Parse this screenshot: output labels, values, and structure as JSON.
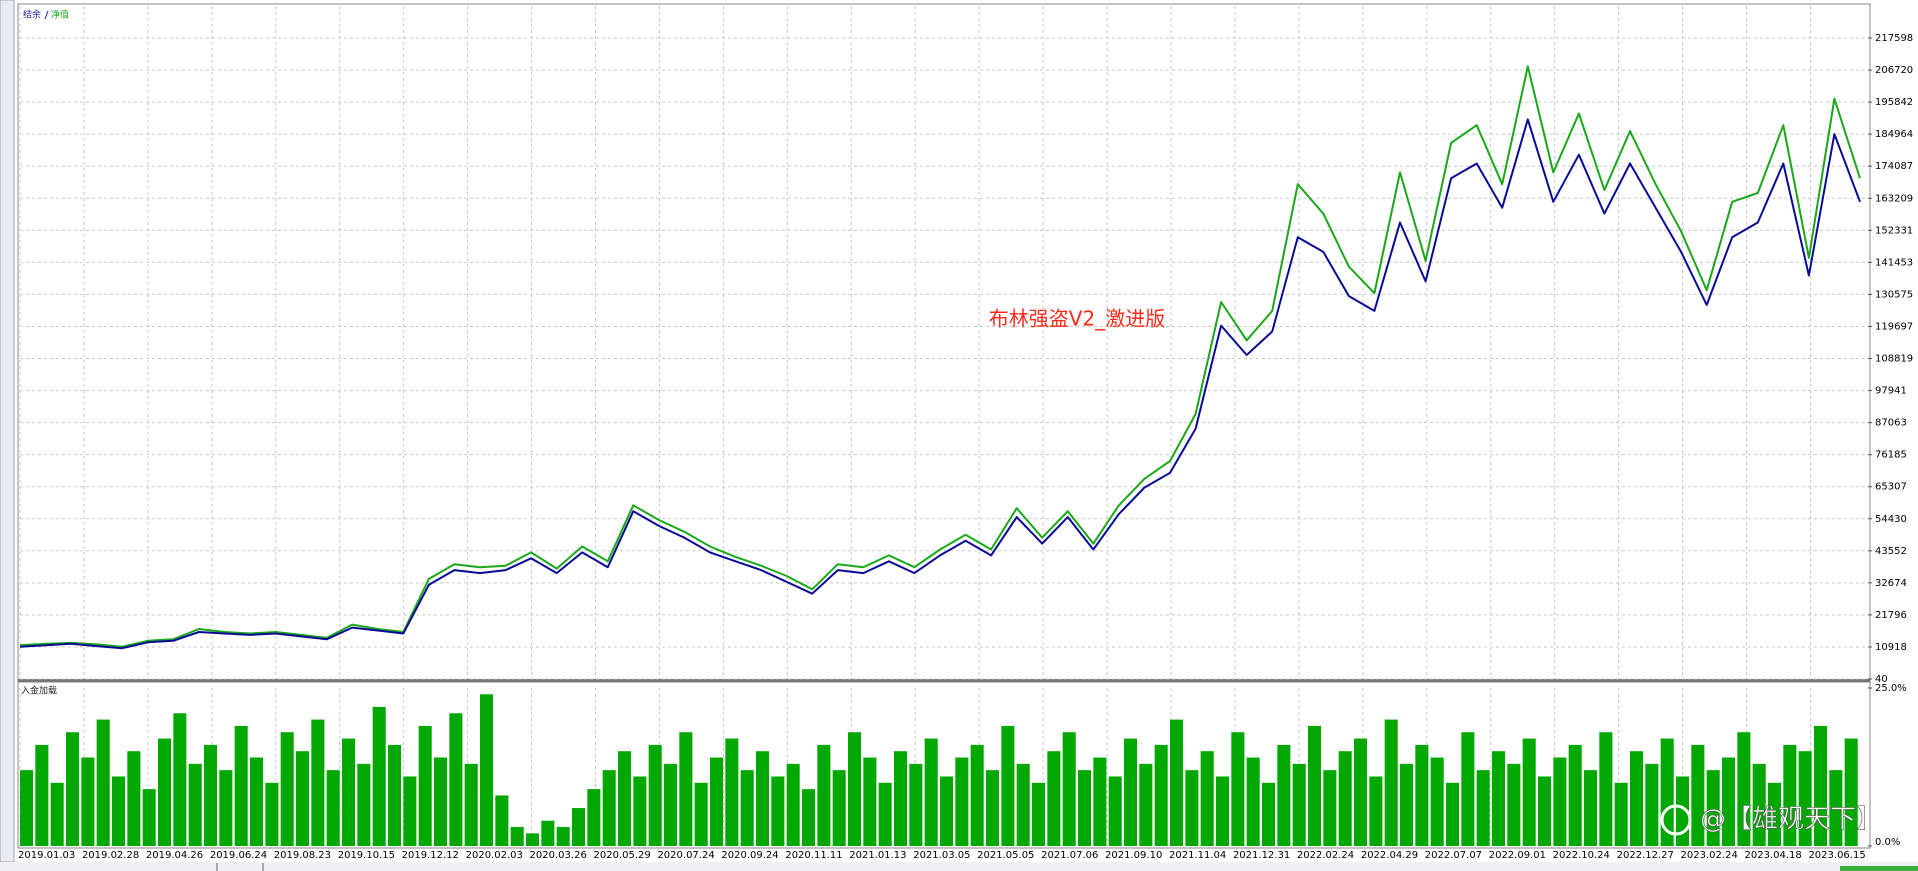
{
  "chart_data": [
    {
      "type": "line",
      "title": "布林强盗V2_激进版",
      "series": [
        {
          "name": "结余",
          "color": "#0a0a96",
          "values": [
            11000,
            11500,
            12000,
            11200,
            10500,
            12500,
            13000,
            16000,
            15500,
            15000,
            15500,
            14500,
            13500,
            17500,
            16500,
            15500,
            32000,
            37000,
            36000,
            37000,
            41000,
            36000,
            43000,
            38000,
            57000,
            52000,
            48000,
            43000,
            40000,
            37000,
            33000,
            29000,
            37000,
            36000,
            40000,
            36000,
            42000,
            47000,
            42000,
            55000,
            46000,
            55000,
            44000,
            56000,
            65000,
            70000,
            85000,
            120000,
            110000,
            118000,
            150000,
            145000,
            130000,
            125000,
            155000,
            135000,
            170000,
            175000,
            160000,
            190000,
            162000,
            178000,
            158000,
            175000,
            160000,
            145000,
            127000,
            150000,
            155000,
            175000,
            137000,
            185000,
            162000
          ]
        },
        {
          "name": "净值",
          "color": "#1aa81a",
          "values": [
            11500,
            12000,
            12300,
            11800,
            11000,
            13000,
            13500,
            17000,
            16000,
            15500,
            16000,
            15000,
            14000,
            18500,
            17000,
            16000,
            34000,
            39000,
            38000,
            38500,
            43000,
            37500,
            45000,
            40000,
            59000,
            54000,
            50000,
            45000,
            41500,
            38500,
            35000,
            30500,
            39000,
            38000,
            42000,
            38000,
            44000,
            49000,
            44000,
            58000,
            48000,
            57000,
            46000,
            59000,
            68000,
            74000,
            90000,
            128000,
            115000,
            125000,
            168000,
            158000,
            140000,
            131000,
            172000,
            142000,
            182000,
            188000,
            168000,
            208000,
            172000,
            192000,
            166000,
            186000,
            168000,
            152000,
            132000,
            162000,
            165000,
            188000,
            143000,
            197000,
            170000
          ]
        }
      ],
      "ylim": [
        40,
        228476
      ],
      "yticks": [
        40,
        10918,
        21796,
        32674,
        43552,
        54430,
        65307,
        76185,
        87063,
        97941,
        108819,
        119697,
        130575,
        141453,
        152331,
        163209,
        174087,
        184964,
        195842,
        206720,
        217598
      ],
      "grid": true
    },
    {
      "type": "bar",
      "title": "入金加载",
      "color": "#00a800",
      "values": [
        12,
        16,
        10,
        18,
        14,
        20,
        11,
        15,
        9,
        17,
        21,
        13,
        16,
        12,
        19,
        14,
        10,
        18,
        15,
        20,
        12,
        17,
        13,
        22,
        16,
        11,
        19,
        14,
        21,
        13,
        24,
        8,
        3,
        2,
        4,
        3,
        6,
        9,
        12,
        15,
        11,
        16,
        13,
        18,
        10,
        14,
        17,
        12,
        15,
        11,
        13,
        9,
        16,
        12,
        18,
        14,
        10,
        15,
        13,
        17,
        11,
        14,
        16,
        12,
        19,
        13,
        10,
        15,
        18,
        12,
        14,
        11,
        17,
        13,
        16,
        20,
        12,
        15,
        11,
        18,
        14,
        10,
        16,
        13,
        19,
        12,
        15,
        17,
        11,
        20,
        13,
        16,
        14,
        10,
        18,
        12,
        15,
        13,
        17,
        11,
        14,
        16,
        12,
        18,
        10,
        15,
        13,
        17,
        11,
        16,
        12,
        14,
        18,
        13,
        10,
        16,
        15,
        19,
        12,
        17
      ],
      "ylim": [
        0,
        25
      ],
      "yticks": [
        {
          "value": 0,
          "label": "0.0%"
        },
        {
          "value": 25,
          "label": "25.0%"
        }
      ],
      "xticks": [
        "2019.01.03",
        "2019.02.28",
        "2019.04.26",
        "2019.06.24",
        "2019.08.23",
        "2019.10.15",
        "2019.12.12",
        "2020.02.03",
        "2020.03.26",
        "2020.05.29",
        "2020.07.24",
        "2020.09.24",
        "2020.11.11",
        "2021.01.13",
        "2021.03.05",
        "2021.05.05",
        "2021.07.06",
        "2021.09.10",
        "2021.11.04",
        "2021.12.31",
        "2022.02.24",
        "2022.04.29",
        "2022.07.07",
        "2022.09.01",
        "2022.10.24",
        "2022.12.27",
        "2023.02.24",
        "2023.04.18",
        "2023.06.15"
      ],
      "grid": true
    }
  ],
  "watermark": "@【雄观天下】"
}
